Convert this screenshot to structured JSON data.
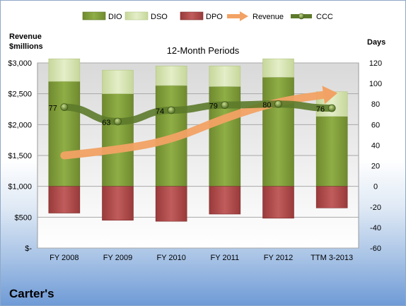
{
  "company": "Carter's",
  "chart_data": {
    "type": "bar",
    "title": "12-Month Periods",
    "categories": [
      "FY 2008",
      "FY 2009",
      "FY 2010",
      "FY 2011",
      "FY 2012",
      "TTM 3-2013"
    ],
    "left_axis": {
      "label_line1": "Revenue",
      "label_line2": "$millions",
      "ylim": [
        0,
        3000
      ],
      "ticks": [
        0,
        500,
        1000,
        1500,
        2000,
        2500,
        3000
      ],
      "tick_labels": [
        "$-",
        "$500",
        "$1,000",
        "$1,500",
        "$2,000",
        "$2,500",
        "$3,000"
      ]
    },
    "right_axis": {
      "label": "Days",
      "ylim": [
        -60,
        120
      ],
      "ticks": [
        -60,
        -40,
        -20,
        0,
        20,
        40,
        60,
        80,
        100,
        120
      ],
      "tick_labels": [
        "-60",
        "-40",
        "-20",
        "0",
        "20",
        "40",
        "60",
        "80",
        "100",
        "120"
      ]
    },
    "series": [
      {
        "name": "DIO",
        "axis": "right",
        "kind": "stacked-bar",
        "color": "#7f9a3c",
        "values": [
          102,
          90,
          98,
          97,
          106,
          68
        ]
      },
      {
        "name": "DSO",
        "axis": "right",
        "kind": "stacked-bar",
        "color": "#d7e4b0",
        "values": [
          22,
          23,
          19,
          20,
          18,
          24
        ]
      },
      {
        "name": "DPO",
        "axis": "right",
        "kind": "bar-negative",
        "color": "#b04a4a",
        "values": [
          -26,
          -33,
          -34,
          -27,
          -31,
          -21
        ]
      },
      {
        "name": "Revenue",
        "axis": "left",
        "kind": "arrow-line",
        "color": "#f2a264",
        "values": [
          1500,
          1590,
          1750,
          2110,
          2380,
          2500
        ]
      },
      {
        "name": "CCC",
        "axis": "right",
        "kind": "line-markers",
        "color": "#5c7a2a",
        "values": [
          77,
          63,
          74,
          79,
          80,
          76
        ],
        "labels": [
          "77",
          "63",
          "74",
          "79",
          "80",
          "76"
        ]
      }
    ],
    "grid": true,
    "legend": "top"
  }
}
